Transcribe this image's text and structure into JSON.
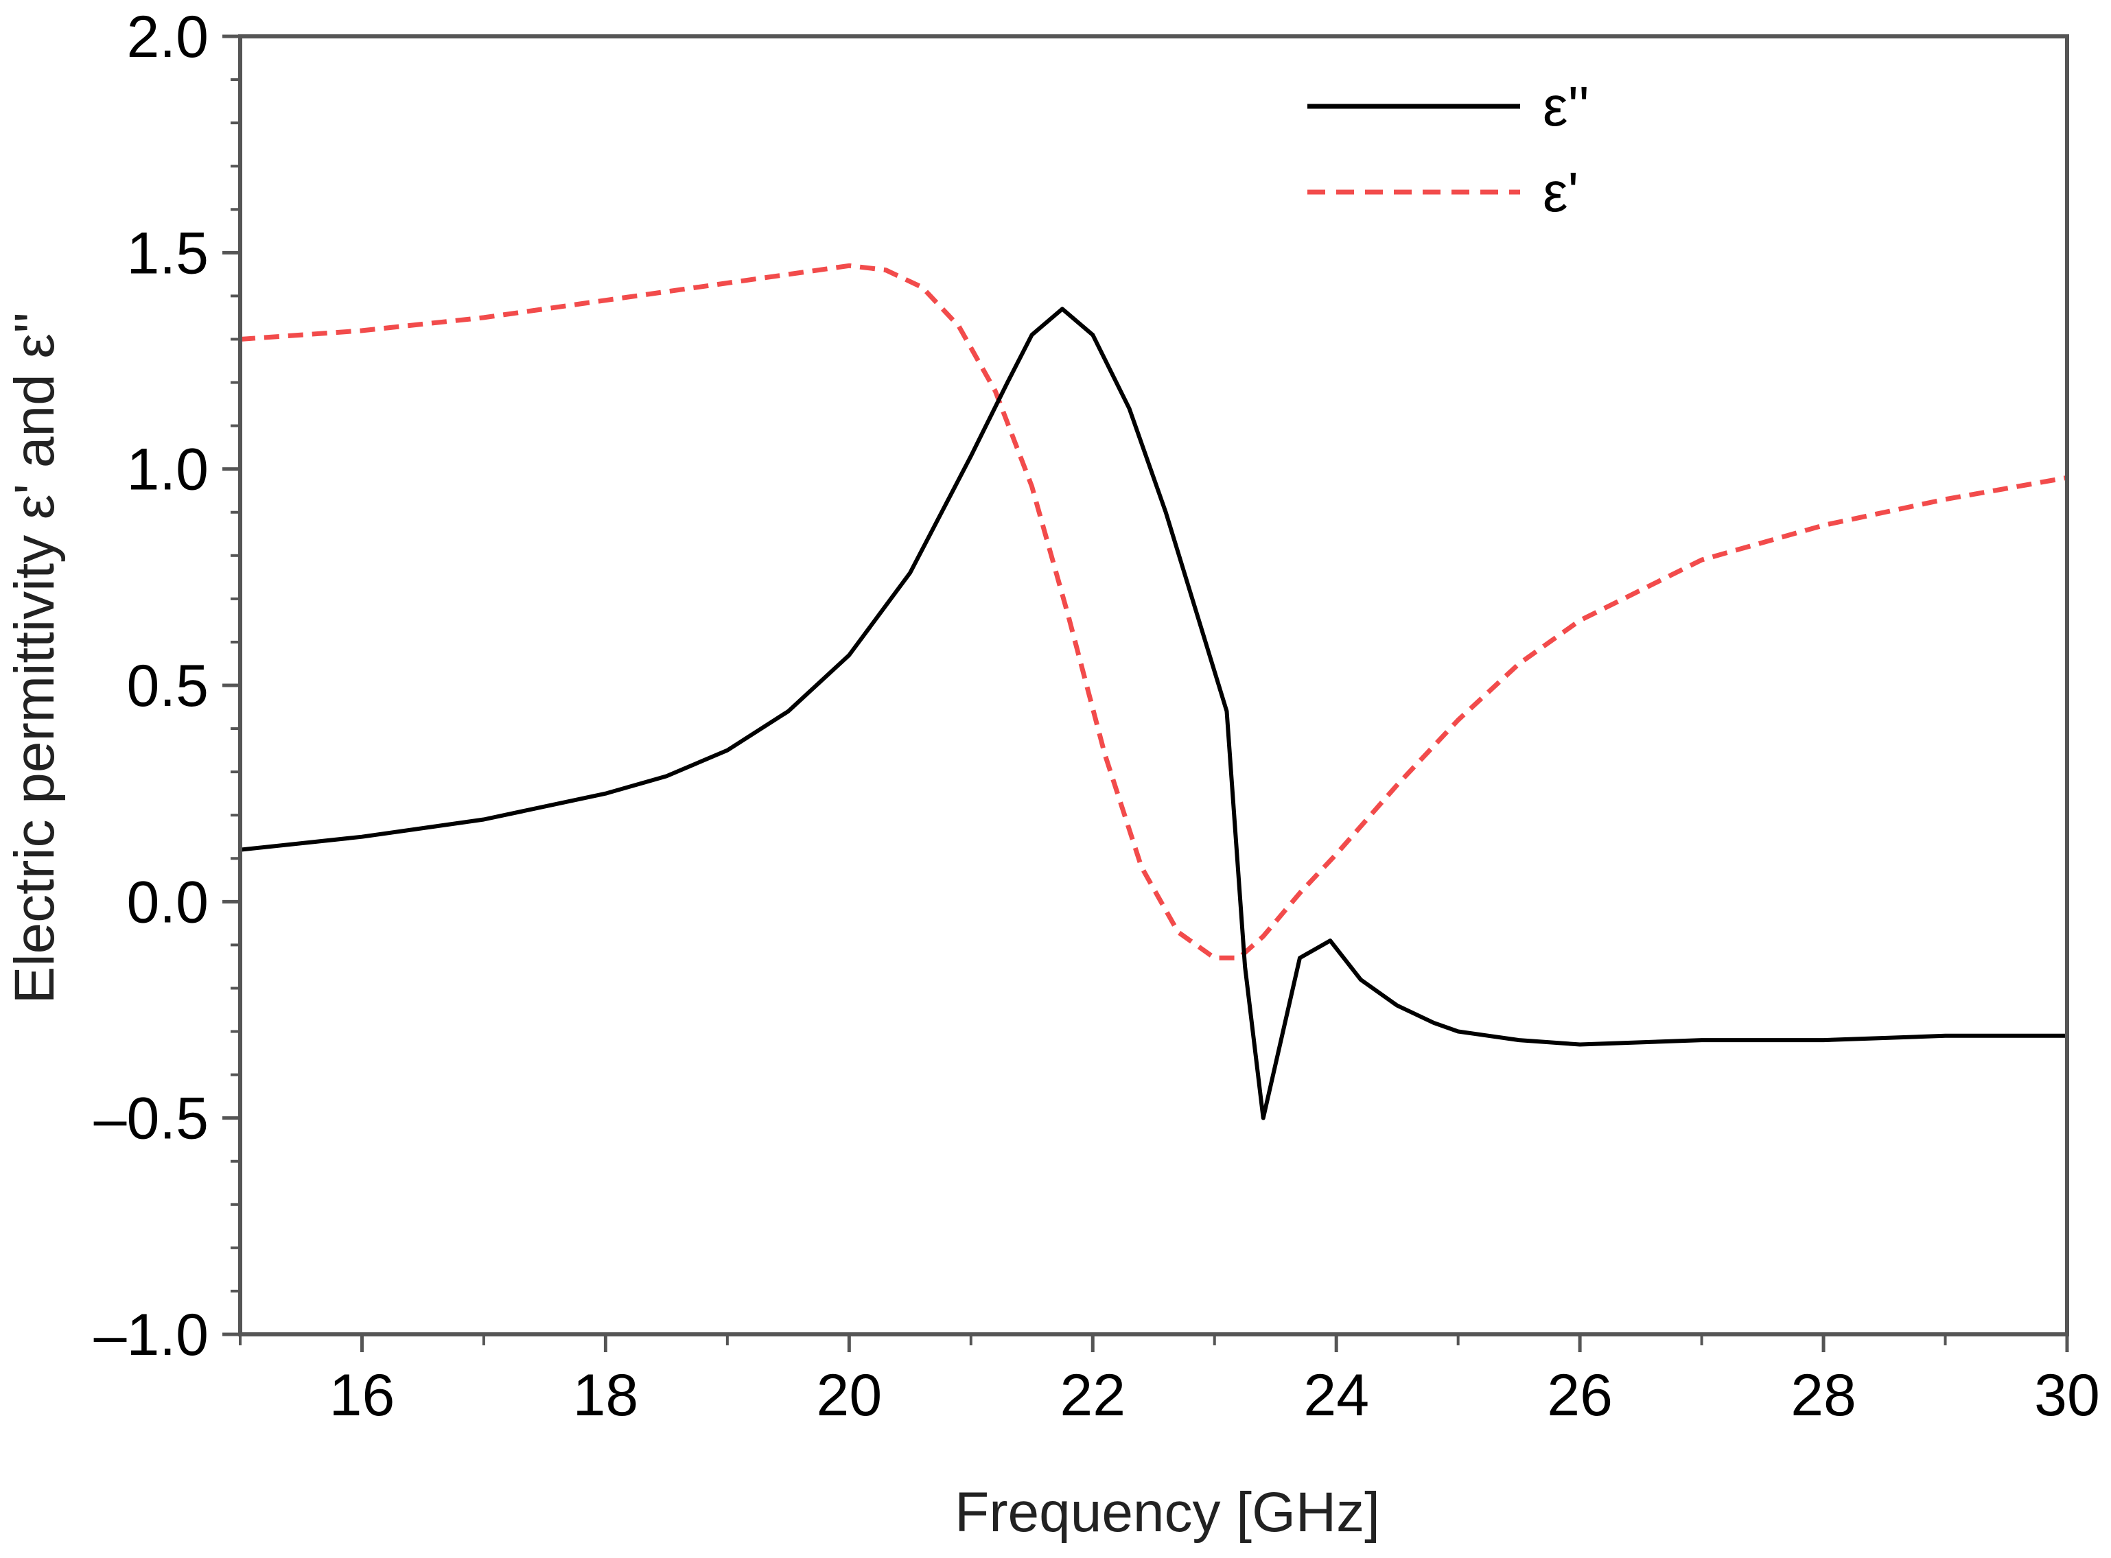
{
  "chart_data": {
    "type": "line",
    "title": "",
    "xlabel": "Frequency [GHz]",
    "ylabel": "Electric permittivity ε' and ε''",
    "xlim": [
      15,
      30
    ],
    "ylim": [
      -1.0,
      2.0
    ],
    "grid": false,
    "legend_position": "top-right",
    "x_ticks": [
      16,
      18,
      20,
      22,
      24,
      26,
      28,
      30
    ],
    "x_tick_labels": [
      "16",
      "18",
      "20",
      "22",
      "24",
      "26",
      "28",
      "30"
    ],
    "y_ticks": [
      2.0,
      1.5,
      1.0,
      0.5,
      0.0,
      -0.5,
      -1.0
    ],
    "y_tick_labels": [
      "2.0",
      "1.5",
      "1.0",
      "0.5",
      "0.0",
      "–0.5",
      "–1.0"
    ],
    "series": [
      {
        "name": "ε''",
        "color": "#000000",
        "style": "solid",
        "x": [
          15,
          16,
          17,
          18,
          18.5,
          19,
          19.5,
          20,
          20.5,
          21,
          21.3,
          21.5,
          21.75,
          22,
          22.3,
          22.6,
          23.1,
          23.25,
          23.4,
          23.7,
          23.95,
          24.2,
          24.5,
          24.8,
          25,
          25.5,
          26,
          27,
          28,
          29,
          30
        ],
        "values": [
          0.12,
          0.15,
          0.19,
          0.25,
          0.29,
          0.35,
          0.44,
          0.57,
          0.76,
          1.03,
          1.2,
          1.31,
          1.37,
          1.31,
          1.14,
          0.9,
          0.44,
          -0.15,
          -0.5,
          -0.13,
          -0.09,
          -0.18,
          -0.24,
          -0.28,
          -0.3,
          -0.32,
          -0.33,
          -0.32,
          -0.32,
          -0.31,
          -0.31
        ]
      },
      {
        "name": "ε'",
        "color": "#f24b4b",
        "style": "dashed",
        "x": [
          15,
          16,
          17,
          18,
          19,
          19.5,
          20,
          20.3,
          20.6,
          20.9,
          21.2,
          21.5,
          21.8,
          22.1,
          22.4,
          22.7,
          23.0,
          23.2,
          23.4,
          23.7,
          24,
          24.5,
          25,
          25.5,
          26,
          27,
          28,
          29,
          30
        ],
        "values": [
          1.3,
          1.32,
          1.35,
          1.39,
          1.43,
          1.45,
          1.47,
          1.46,
          1.42,
          1.33,
          1.18,
          0.96,
          0.66,
          0.34,
          0.08,
          -0.07,
          -0.13,
          -0.13,
          -0.08,
          0.02,
          0.11,
          0.27,
          0.42,
          0.55,
          0.65,
          0.79,
          0.87,
          0.93,
          0.98
        ]
      }
    ]
  },
  "colors": {
    "axis": "#555555",
    "series_1": "#000000",
    "series_2": "#f24b4b"
  }
}
